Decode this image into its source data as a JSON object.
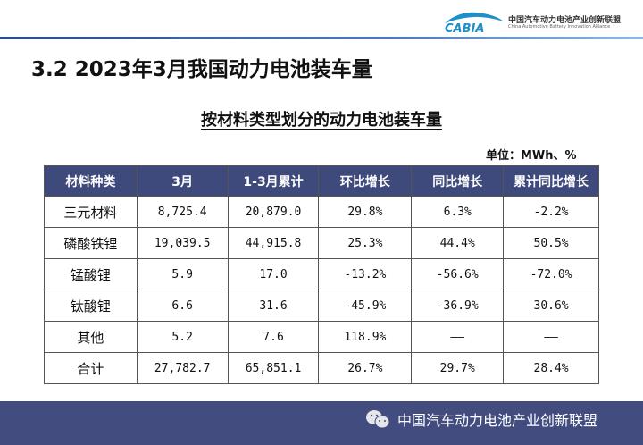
{
  "header": {
    "logo_text": "CABIA",
    "org_name_cn": "中国汽车动力电池产业创新联盟",
    "org_name_en": "China Automotive Battery Innovation Alliance",
    "accent_color": "#2c4a9a"
  },
  "page_title": "3.2  2023年3月我国动力电池装车量",
  "table_title": "按材料类型划分的动力电池装车量",
  "unit": "单位：MWh、%",
  "table": {
    "header_color": "#3f4a7c",
    "columns": [
      "材料种类",
      "3月",
      "1-3月累计",
      "环比增长",
      "同比增长",
      "累计同比增长"
    ],
    "rows": [
      [
        "三元材料",
        "8,725.4",
        "20,879.0",
        "29.8%",
        "6.3%",
        "-2.2%"
      ],
      [
        "磷酸铁锂",
        "19,039.5",
        "44,915.8",
        "25.3%",
        "44.4%",
        "50.5%"
      ],
      [
        "锰酸锂",
        "5.9",
        "17.0",
        "-13.2%",
        "-56.6%",
        "-72.0%"
      ],
      [
        "钛酸锂",
        "6.6",
        "31.6",
        "-45.9%",
        "-36.9%",
        "30.6%"
      ],
      [
        "其他",
        "5.2",
        "7.6",
        "118.9%",
        "——",
        "——"
      ],
      [
        "合计",
        "27,782.7",
        "65,851.1",
        "26.7%",
        "29.7%",
        "28.4%"
      ]
    ]
  },
  "footer": {
    "icon": "wechat-icon",
    "text": "中国汽车动力电池产业创新联盟",
    "color": "#424c7e"
  }
}
